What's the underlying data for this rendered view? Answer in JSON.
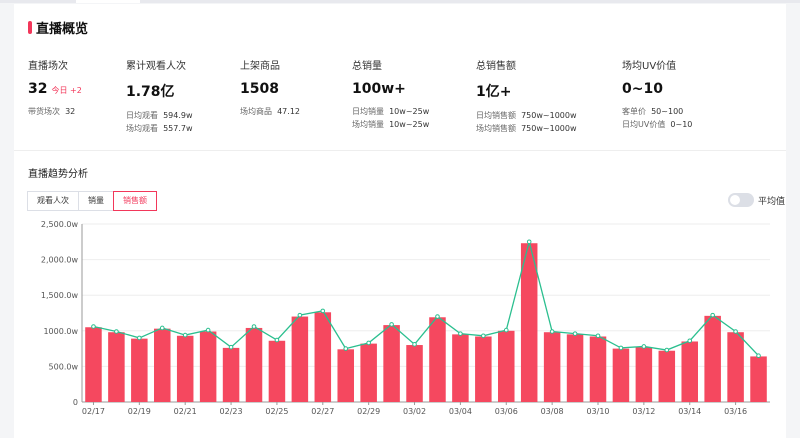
{
  "overview": {
    "title": "直播概览",
    "stats": [
      {
        "label": "直播场次",
        "value": "32",
        "today": "今日 +2",
        "sub": [
          [
            "带货场次",
            "32"
          ]
        ]
      },
      {
        "label": "累计观看人次",
        "value": "1.78亿",
        "today": "",
        "sub": [
          [
            "日均观看",
            "594.9w"
          ],
          [
            "场均观看",
            "557.7w"
          ]
        ]
      },
      {
        "label": "上架商品",
        "value": "1508",
        "today": "",
        "sub": [
          [
            "场均商品",
            "47.12"
          ]
        ]
      },
      {
        "label": "总销量",
        "value": "100w+",
        "today": "",
        "sub": [
          [
            "日均销量",
            "10w~25w"
          ],
          [
            "场均销量",
            "10w~25w"
          ]
        ]
      },
      {
        "label": "总销售额",
        "value": "1亿+",
        "today": "",
        "sub": [
          [
            "日均销售额",
            "750w~1000w"
          ],
          [
            "场均销售额",
            "750w~1000w"
          ]
        ]
      },
      {
        "label": "场均UV价值",
        "value": "0~10",
        "today": "",
        "sub": [
          [
            "客单价",
            "50~100"
          ],
          [
            "日均UV价值",
            "0~10"
          ]
        ]
      }
    ]
  },
  "trend": {
    "title": "直播趋势分析",
    "tabs": [
      "观看人次",
      "销量",
      "销售额"
    ],
    "active_tab": 2,
    "toggle_label": "平均值",
    "toggle_on": false
  },
  "colors": {
    "accent": "#f2375a",
    "bar": "#f5485f",
    "line": "#2bbf8f"
  },
  "chart_data": {
    "type": "bar",
    "xlabels": [
      "02/17",
      "02/19",
      "02/21",
      "02/23",
      "02/25",
      "02/27",
      "02/29",
      "03/02",
      "03/04",
      "03/06",
      "03/08",
      "03/10",
      "03/12",
      "03/14",
      "03/16"
    ],
    "ytick_labels": [
      "0",
      "500.0w",
      "1000.0w",
      "1,500.0w",
      "2,000.0w",
      "2,500.0w"
    ],
    "ylim": [
      0,
      2500
    ],
    "values": [
      1050,
      980,
      890,
      1030,
      930,
      990,
      760,
      1040,
      860,
      1200,
      1260,
      740,
      820,
      1080,
      800,
      1190,
      950,
      920,
      1000,
      2230,
      980,
      950,
      920,
      750,
      770,
      720,
      850,
      1210,
      980,
      640
    ],
    "line_values": [
      1060,
      990,
      900,
      1040,
      940,
      1010,
      770,
      1060,
      870,
      1220,
      1280,
      750,
      830,
      1090,
      810,
      1200,
      960,
      930,
      1010,
      2250,
      990,
      960,
      930,
      760,
      780,
      730,
      860,
      1220,
      990,
      650
    ]
  }
}
